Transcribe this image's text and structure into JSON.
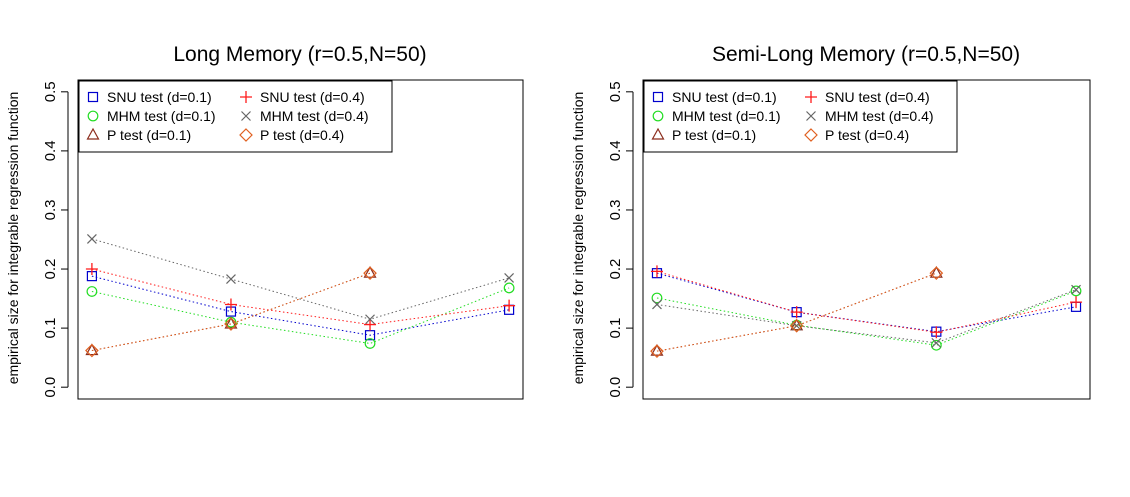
{
  "chart_data": [
    {
      "type": "line",
      "title": "Long Memory (r=0.5,N=50)",
      "xlabel": "",
      "ylabel": "empirical size for integrable regression function",
      "x": [
        1,
        2,
        3,
        4
      ],
      "xlim": [
        0.9,
        4.1
      ],
      "ylim": [
        -0.02,
        0.52
      ],
      "yticks": [
        "0.0",
        "0.1",
        "0.2",
        "0.3",
        "0.4",
        "0.5"
      ],
      "grid": false,
      "legend_position": "top-left",
      "series": [
        {
          "name": "SNU test (d=0.1)",
          "marker": "square",
          "color": "#0000cd",
          "values": [
            0.188,
            0.128,
            0.088,
            0.131
          ]
        },
        {
          "name": "MHM test (d=0.1)",
          "marker": "circle",
          "color": "#22dd22",
          "values": [
            0.162,
            0.11,
            0.074,
            0.168
          ]
        },
        {
          "name": "P test (d=0.1)",
          "marker": "triangle",
          "color": "#8b2c1c",
          "values": [
            0.062,
            0.107,
            0.193,
            null
          ]
        },
        {
          "name": "SNU test (d=0.4)",
          "marker": "plus",
          "color": "#ff1a1a",
          "values": [
            0.2,
            0.14,
            0.106,
            0.138
          ]
        },
        {
          "name": "MHM test (d=0.4)",
          "marker": "cross",
          "color": "#666666",
          "values": [
            0.251,
            0.183,
            0.115,
            0.185
          ]
        },
        {
          "name": "P test (d=0.4)",
          "marker": "diamond",
          "color": "#e06020",
          "values": [
            0.062,
            0.107,
            0.193,
            null
          ]
        }
      ]
    },
    {
      "type": "line",
      "title": "Semi-Long Memory (r=0.5,N=50)",
      "xlabel": "",
      "ylabel": "empirical size for integrable regression function",
      "x": [
        1,
        2,
        3,
        4
      ],
      "xlim": [
        0.9,
        4.1
      ],
      "ylim": [
        -0.02,
        0.52
      ],
      "yticks": [
        "0.0",
        "0.1",
        "0.2",
        "0.3",
        "0.4",
        "0.5"
      ],
      "grid": false,
      "legend_position": "top-left",
      "series": [
        {
          "name": "SNU test (d=0.1)",
          "marker": "square",
          "color": "#0000cd",
          "values": [
            0.193,
            0.127,
            0.094,
            0.136
          ]
        },
        {
          "name": "MHM test (d=0.1)",
          "marker": "circle",
          "color": "#22dd22",
          "values": [
            0.151,
            0.105,
            0.071,
            0.163
          ]
        },
        {
          "name": "P test (d=0.1)",
          "marker": "triangle",
          "color": "#8b2c1c",
          "values": [
            0.061,
            0.104,
            0.193,
            null
          ]
        },
        {
          "name": "SNU test (d=0.4)",
          "marker": "plus",
          "color": "#ff1a1a",
          "values": [
            0.196,
            0.127,
            0.093,
            0.144
          ]
        },
        {
          "name": "MHM test (d=0.4)",
          "marker": "cross",
          "color": "#666666",
          "values": [
            0.14,
            0.104,
            0.075,
            0.165
          ]
        },
        {
          "name": "P test (d=0.4)",
          "marker": "diamond",
          "color": "#e06020",
          "values": [
            0.061,
            0.104,
            0.193,
            null
          ]
        }
      ]
    }
  ]
}
